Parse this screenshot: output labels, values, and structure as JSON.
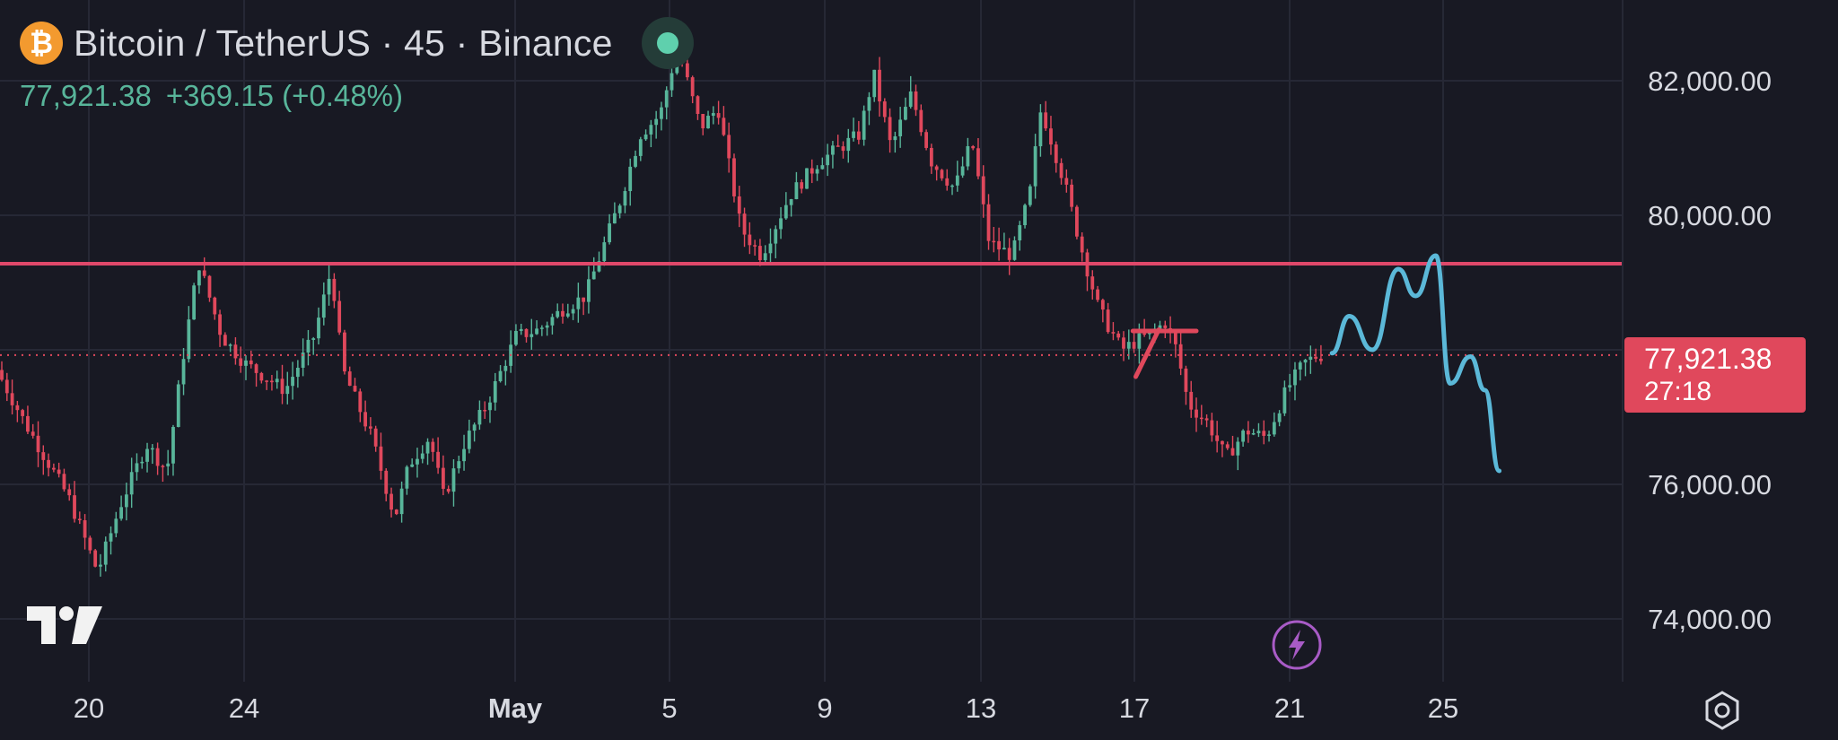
{
  "header": {
    "coin_symbol": "₿",
    "title": "Bitcoin / TetherUS · 45 · Binance",
    "last_price": "77,921.38",
    "change": "+369.15 (+0.48%)"
  },
  "price_scale": {
    "labels": [
      "82,000.00",
      "80,000.00",
      "76,000.00",
      "74,000.00"
    ],
    "current_price": "77,921.38",
    "countdown": "27:18"
  },
  "time_scale": {
    "labels": [
      "20",
      "24",
      "May",
      "5",
      "9",
      "13",
      "17",
      "21",
      "25"
    ]
  },
  "icons": {
    "logo": "tradingview-logo",
    "alert": "flash-icon",
    "settings": "settings-gear-icon"
  },
  "colors": {
    "background": "#181923",
    "up": "#58b59a",
    "down": "#e0485c",
    "resistance_line": "#e0486a",
    "projection": "#5bb8d8"
  },
  "chart_data": {
    "type": "line",
    "title": "Bitcoin / TetherUS · 45 · Binance",
    "xlabel": "",
    "ylabel": "",
    "ylim": [
      73200,
      83000
    ],
    "x_ticks": [
      "20",
      "24",
      "May",
      "5",
      "9",
      "13",
      "17",
      "21",
      "25"
    ],
    "y_ticks": [
      74000,
      76000,
      80000,
      82000
    ],
    "series": [
      {
        "values": [
          [
            0,
            77700
          ],
          [
            1,
            76900
          ],
          [
            2.5,
            75800
          ],
          [
            3.5,
            74700
          ],
          [
            4.3,
            75700
          ],
          [
            5.2,
            76600
          ],
          [
            5.9,
            76200
          ],
          [
            6.5,
            78000
          ],
          [
            7.0,
            79300
          ],
          [
            7.8,
            78200
          ],
          [
            8.6,
            77800
          ],
          [
            10.0,
            77400
          ],
          [
            11.0,
            78200
          ],
          [
            11.6,
            79200
          ],
          [
            12.0,
            77700
          ],
          [
            13.0,
            76700
          ],
          [
            13.8,
            75500
          ],
          [
            14.3,
            76300
          ],
          [
            15.0,
            76700
          ],
          [
            15.5,
            75800
          ],
          [
            16.2,
            76600
          ],
          [
            17.0,
            77200
          ],
          [
            18.0,
            78200
          ],
          [
            18.8,
            78300
          ],
          [
            19.6,
            78600
          ],
          [
            20.4,
            78800
          ],
          [
            21.0,
            79500
          ],
          [
            21.6,
            80200
          ],
          [
            22.3,
            81200
          ],
          [
            23.0,
            81500
          ],
          [
            23.6,
            82500
          ],
          [
            24.4,
            81300
          ],
          [
            25.0,
            81600
          ],
          [
            25.8,
            79800
          ],
          [
            26.5,
            79400
          ],
          [
            27.5,
            80300
          ],
          [
            28.5,
            80800
          ],
          [
            29.2,
            81000
          ],
          [
            29.9,
            81200
          ],
          [
            30.4,
            82100
          ],
          [
            31.0,
            81000
          ],
          [
            31.7,
            81800
          ],
          [
            32.4,
            80800
          ],
          [
            33.2,
            80400
          ],
          [
            33.8,
            81100
          ],
          [
            34.4,
            79600
          ],
          [
            35.2,
            79400
          ],
          [
            35.8,
            80300
          ],
          [
            36.2,
            81600
          ],
          [
            37.0,
            80500
          ],
          [
            37.6,
            79500
          ],
          [
            38.2,
            78600
          ],
          [
            39.0,
            78000
          ],
          [
            39.8,
            78200
          ],
          [
            40.5,
            78400
          ],
          [
            40.9,
            78000
          ],
          [
            41.3,
            77200
          ],
          [
            42.0,
            76900
          ],
          [
            42.6,
            76400
          ],
          [
            43.3,
            76800
          ],
          [
            44.0,
            76700
          ],
          [
            44.7,
            77400
          ],
          [
            45.3,
            77800
          ],
          [
            45.8,
            77920
          ]
        ]
      }
    ],
    "annotations": {
      "resistance_level": 79280,
      "current_price": 77921.38,
      "projection": {
        "values": [
          [
            46.1,
            77950
          ],
          [
            46.7,
            78500
          ],
          [
            47.5,
            78000
          ],
          [
            48.4,
            79200
          ],
          [
            49.0,
            78800
          ],
          [
            49.7,
            79400
          ],
          [
            50.2,
            77500
          ],
          [
            50.9,
            77900
          ],
          [
            51.4,
            77400
          ],
          [
            51.9,
            76200
          ]
        ]
      },
      "small_flag": {
        "level": 78280,
        "values": [
          [
            39.3,
            77600
          ],
          [
            40.1,
            78300
          ]
        ]
      }
    }
  }
}
